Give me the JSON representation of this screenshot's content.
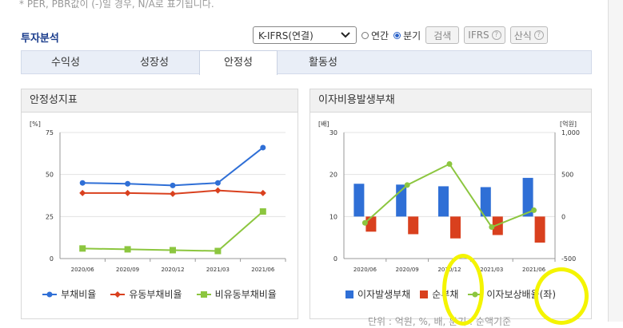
{
  "note": "* PER, PBR값이 (-)일 경우, N/A로 표기됩니다.",
  "title": "투자분석",
  "controls": {
    "select_value": "K-IFRS(연결)",
    "radio_annual": "연간",
    "radio_quarter": "분기",
    "search_label": "검색",
    "ifrs_label": "IFRS",
    "formula_label": "산식"
  },
  "tabs": [
    "수익성",
    "성장성",
    "안정성",
    "활동성"
  ],
  "left_panel": {
    "title": "안정성지표",
    "unit": "[%]",
    "legend": [
      "부채비율",
      "유동부채비율",
      "비유동부채비율"
    ]
  },
  "right_panel": {
    "title": "이자비용발생부채",
    "unit_left": "[배]",
    "unit_right": "[억원]",
    "legend": [
      "이자발생부채",
      "순부채",
      "이자보상배율(좌)"
    ]
  },
  "chart_data": [
    {
      "type": "line",
      "categories": [
        "2020/06",
        "2020/09",
        "2020/12",
        "2021/03",
        "2021/06"
      ],
      "ylabel": "[%]",
      "ylim": [
        0,
        75
      ],
      "yticks": [
        0,
        25,
        50,
        75
      ],
      "series": [
        {
          "name": "부채비율",
          "color": "#2f6fd6",
          "marker": "circle",
          "values": [
            45,
            44.5,
            43.5,
            45,
            66
          ]
        },
        {
          "name": "유동부채비율",
          "color": "#d9401e",
          "marker": "diamond",
          "values": [
            39,
            39,
            38.5,
            40.5,
            39
          ]
        },
        {
          "name": "비유동부채비율",
          "color": "#8cc63f",
          "marker": "square",
          "values": [
            6,
            5.5,
            5,
            4.5,
            28
          ]
        }
      ]
    },
    {
      "type": "bar",
      "categories": [
        "2020/06",
        "2020/09",
        "2020/12",
        "2021/03",
        "2021/06"
      ],
      "ylabel_left": "[배]",
      "ylabel_right": "[억원]",
      "ylim_left": [
        0,
        30
      ],
      "yticks_left": [
        0,
        10,
        20,
        30
      ],
      "ylim_right": [
        -500,
        1000
      ],
      "yticks_right": [
        "-500",
        "0",
        "500",
        "1,000"
      ],
      "series": [
        {
          "name": "이자발생부채",
          "color": "#2f6fd6",
          "axis": "right",
          "values": [
            390,
            380,
            360,
            350,
            460
          ]
        },
        {
          "name": "순부채",
          "color": "#d9401e",
          "axis": "right",
          "values": [
            -180,
            -210,
            -260,
            -220,
            -310
          ]
        },
        {
          "name": "이자보상배율(좌)",
          "color": "#8cc63f",
          "axis": "left",
          "type": "line",
          "values": [
            8.5,
            17.5,
            22.5,
            7.5,
            11.5
          ]
        }
      ]
    }
  ],
  "bottom_text": "단위 : 억원, %, 배, 분기 : 순액기준"
}
